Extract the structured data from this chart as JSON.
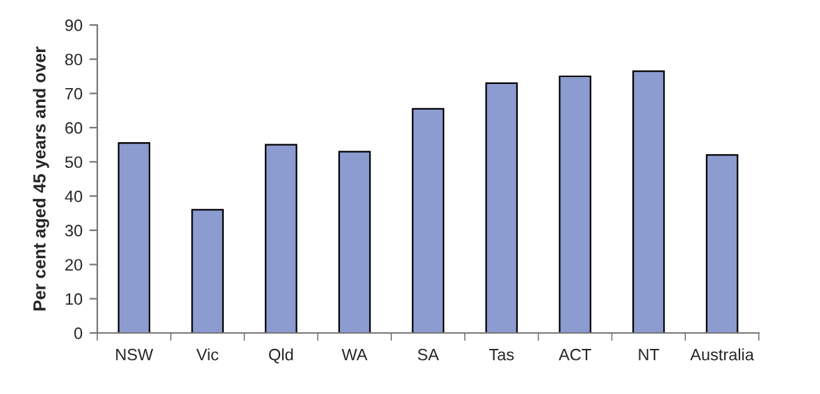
{
  "chart_data": {
    "type": "bar",
    "ylabel": "Per cent aged 45 years and over",
    "categories": [
      "NSW",
      "Vic",
      "Qld",
      "WA",
      "SA",
      "Tas",
      "ACT",
      "NT",
      "Australia"
    ],
    "values": [
      55.5,
      36,
      55,
      53,
      65.5,
      73,
      75,
      76.5,
      52
    ],
    "color": "#8c9bd0",
    "ylim": [
      0,
      90
    ],
    "yticks": [
      0,
      10,
      20,
      30,
      40,
      50,
      60,
      70,
      80,
      90
    ],
    "grid": false,
    "legend": false
  }
}
